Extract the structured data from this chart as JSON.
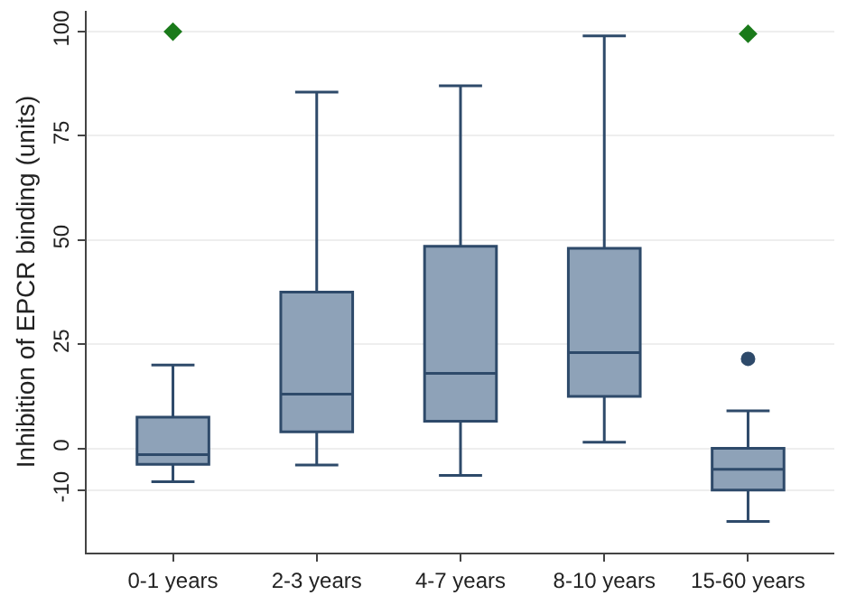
{
  "chart_data": {
    "type": "box",
    "ylabel": "Inhibition of EPCR binding (units)",
    "categories": [
      "0-1 years",
      "2-3 years",
      "4-7 years",
      "8-10 years",
      "15-60 years"
    ],
    "series": [
      {
        "color": "#8ea2b8",
        "boxes": [
          {
            "low": -8,
            "q1": -3.8,
            "median": -1.5,
            "q3": 7.5,
            "high": 20
          },
          {
            "low": -4,
            "q1": 4,
            "median": 13,
            "q3": 37.5,
            "high": 85.5
          },
          {
            "low": -6.5,
            "q1": 6.5,
            "median": 18,
            "q3": 48.5,
            "high": 87
          },
          {
            "low": 1.5,
            "q1": 12.5,
            "median": 23,
            "q3": 48,
            "high": 99
          },
          {
            "low": -17.5,
            "q1": -10,
            "median": -5,
            "q3": 0,
            "high": 9,
            "outliers": [
              21.5
            ]
          }
        ]
      },
      {
        "type": "scatter",
        "color": "#1a7a1a",
        "marker": "diamond",
        "x": [
          "0-1 years",
          "15-60 years"
        ],
        "values": [
          100,
          99.5
        ]
      }
    ],
    "ylim": [
      -25,
      105
    ],
    "yticks": [
      -10,
      0,
      25,
      50,
      75,
      100
    ],
    "grid": "y"
  }
}
